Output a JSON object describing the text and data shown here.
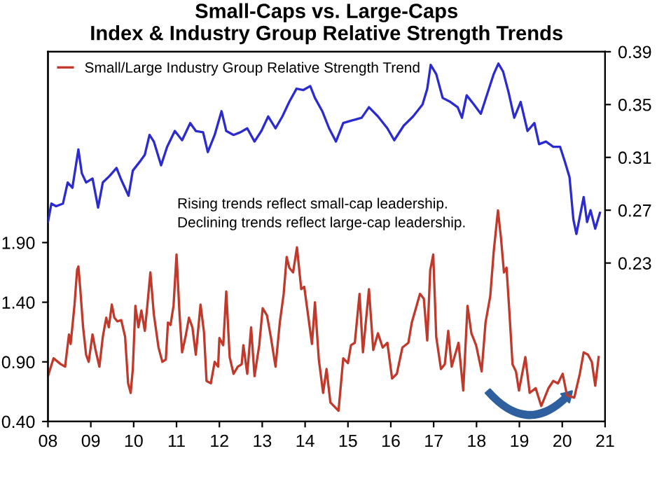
{
  "chart_data": {
    "type": "line",
    "title": "Small-Caps vs. Large-Caps\nIndex & Industry Group Relative Strength Trends",
    "xlim": [
      2008,
      2021
    ],
    "xticks": [
      {
        "value": 2008,
        "label": "08"
      },
      {
        "value": 2009,
        "label": "09"
      },
      {
        "value": 2010,
        "label": "10"
      },
      {
        "value": 2011,
        "label": "11"
      },
      {
        "value": 2012,
        "label": "12"
      },
      {
        "value": 2013,
        "label": "13"
      },
      {
        "value": 2014,
        "label": "14"
      },
      {
        "value": 2015,
        "label": "15"
      },
      {
        "value": 2016,
        "label": "16"
      },
      {
        "value": 2017,
        "label": "17"
      },
      {
        "value": 2018,
        "label": "18"
      },
      {
        "value": 2019,
        "label": "19"
      },
      {
        "value": 2020,
        "label": "20"
      },
      {
        "value": 2021,
        "label": "21"
      }
    ],
    "ylim": [
      0.4,
      3.5
    ],
    "yticks": [
      {
        "value": 0.4,
        "label": "0.40"
      },
      {
        "value": 0.9,
        "label": "0.90"
      },
      {
        "value": 1.4,
        "label": "1.40"
      },
      {
        "value": 1.9,
        "label": "1.90"
      }
    ],
    "y2lim": [
      0.11,
      0.39
    ],
    "y2ticks": [
      0.23,
      0.27,
      0.31,
      0.35,
      0.39
    ],
    "legend": "top left",
    "grid": false,
    "annotations": [
      "Rising trends reflect small-cap leadership.\nDeclining trends reflect large-cap leadership."
    ],
    "series": [
      {
        "name": "Small/Large Industry Group Relative Strength Trend",
        "color": "#c0392b",
        "axis": "y",
        "x": [
          2008.0,
          2008.13,
          2008.3,
          2008.4,
          2008.49,
          2008.53,
          2008.62,
          2008.68,
          2008.71,
          2008.75,
          2008.82,
          2008.89,
          2008.95,
          2009.04,
          2009.11,
          2009.2,
          2009.28,
          2009.36,
          2009.42,
          2009.49,
          2009.55,
          2009.62,
          2009.71,
          2009.8,
          2009.87,
          2009.93,
          2009.98,
          2010.04,
          2010.11,
          2010.18,
          2010.26,
          2010.31,
          2010.39,
          2010.47,
          2010.58,
          2010.67,
          2010.75,
          2010.8,
          2010.86,
          2010.93,
          2011.0,
          2011.07,
          2011.13,
          2011.21,
          2011.29,
          2011.37,
          2011.45,
          2011.56,
          2011.64,
          2011.7,
          2011.8,
          2011.89,
          2011.97,
          2012.0,
          2012.09,
          2012.16,
          2012.24,
          2012.33,
          2012.43,
          2012.52,
          2012.56,
          2012.65,
          2012.74,
          2012.82,
          2012.93,
          2013.01,
          2013.11,
          2013.2,
          2013.31,
          2013.41,
          2013.5,
          2013.57,
          2013.63,
          2013.72,
          2013.81,
          2013.91,
          2013.98,
          2014.07,
          2014.16,
          2014.23,
          2014.32,
          2014.42,
          2014.5,
          2014.59,
          2014.78,
          2014.89,
          2015.0,
          2015.07,
          2015.16,
          2015.27,
          2015.35,
          2015.49,
          2015.59,
          2015.7,
          2015.81,
          2015.92,
          2016.03,
          2016.14,
          2016.27,
          2016.41,
          2016.49,
          2016.57,
          2016.68,
          2016.77,
          2016.85,
          2016.92,
          2016.99,
          2017.06,
          2017.17,
          2017.26,
          2017.34,
          2017.42,
          2017.58,
          2017.69,
          2017.79,
          2017.88,
          2017.99,
          2018.12,
          2018.21,
          2018.32,
          2018.4,
          2018.5,
          2018.57,
          2018.64,
          2018.7,
          2018.77,
          2018.84,
          2018.92,
          2018.99,
          2019.14,
          2019.24,
          2019.38,
          2019.51,
          2019.68,
          2019.79,
          2019.9,
          2020.01,
          2020.11,
          2020.28,
          2020.41,
          2020.5,
          2020.6,
          2020.69,
          2020.77,
          2020.85
        ],
        "values": [
          0.78,
          0.93,
          0.88,
          0.86,
          1.13,
          1.05,
          1.38,
          1.67,
          1.7,
          1.53,
          1.19,
          0.96,
          0.9,
          1.13,
          1.0,
          0.86,
          1.11,
          1.27,
          1.19,
          1.38,
          1.27,
          1.24,
          1.25,
          1.11,
          0.72,
          0.64,
          0.84,
          1.37,
          1.19,
          1.33,
          1.16,
          1.34,
          1.65,
          1.3,
          1.02,
          0.9,
          0.92,
          1.23,
          1.21,
          1.37,
          1.8,
          1.3,
          0.98,
          1.11,
          1.27,
          1.19,
          0.96,
          1.38,
          1.15,
          0.74,
          0.72,
          0.9,
          0.86,
          1.1,
          1.04,
          1.49,
          0.94,
          0.8,
          0.86,
          0.88,
          1.04,
          0.8,
          1.19,
          0.78,
          1.04,
          1.35,
          1.29,
          1.11,
          0.86,
          1.23,
          1.47,
          1.78,
          1.69,
          1.65,
          1.86,
          1.51,
          1.53,
          1.29,
          1.05,
          1.4,
          0.92,
          0.64,
          0.84,
          0.56,
          0.49,
          0.93,
          0.89,
          1.04,
          1.06,
          1.47,
          0.98,
          1.51,
          1.0,
          1.14,
          1.02,
          1.06,
          0.76,
          0.8,
          1.02,
          1.06,
          1.23,
          1.33,
          1.47,
          1.43,
          1.08,
          1.67,
          1.8,
          1.11,
          0.84,
          0.88,
          1.16,
          0.86,
          1.06,
          0.66,
          1.37,
          1.14,
          1.04,
          0.82,
          1.23,
          1.45,
          1.82,
          2.17,
          1.94,
          1.65,
          1.69,
          1.3,
          0.88,
          0.82,
          0.66,
          0.94,
          0.64,
          0.68,
          0.53,
          0.68,
          0.74,
          0.72,
          0.8,
          0.62,
          0.6,
          0.8,
          0.98,
          0.96,
          0.9,
          0.7,
          0.94
        ]
      },
      {
        "color": "#2b2bd0",
        "axis": "y2",
        "x": [
          2008.0,
          2008.08,
          2008.19,
          2008.35,
          2008.46,
          2008.57,
          2008.71,
          2008.79,
          2008.89,
          2009.04,
          2009.17,
          2009.28,
          2009.44,
          2009.6,
          2009.71,
          2009.88,
          2009.98,
          2010.15,
          2010.26,
          2010.37,
          2010.47,
          2010.64,
          2010.78,
          2010.96,
          2011.13,
          2011.32,
          2011.45,
          2011.62,
          2011.73,
          2011.89,
          2012.05,
          2012.16,
          2012.33,
          2012.49,
          2012.65,
          2012.82,
          2012.98,
          2013.14,
          2013.31,
          2013.47,
          2013.63,
          2013.8,
          2013.96,
          2014.12,
          2014.23,
          2014.4,
          2014.56,
          2014.72,
          2014.89,
          2015.1,
          2015.32,
          2015.49,
          2015.7,
          2015.92,
          2016.08,
          2016.3,
          2016.52,
          2016.74,
          2016.85,
          2016.93,
          2017.06,
          2017.21,
          2017.39,
          2017.56,
          2017.66,
          2017.77,
          2017.94,
          2018.1,
          2018.26,
          2018.4,
          2018.51,
          2018.62,
          2018.75,
          2018.88,
          2019.03,
          2019.19,
          2019.35,
          2019.46,
          2019.62,
          2019.79,
          2019.95,
          2020.06,
          2020.17,
          2020.26,
          2020.33,
          2020.41,
          2020.5,
          2020.58,
          2020.66,
          2020.77,
          2020.88
        ],
        "values": [
          0.261,
          0.275,
          0.273,
          0.275,
          0.291,
          0.287,
          0.316,
          0.298,
          0.291,
          0.294,
          0.272,
          0.291,
          0.296,
          0.302,
          0.293,
          0.281,
          0.3,
          0.307,
          0.312,
          0.327,
          0.322,
          0.304,
          0.318,
          0.33,
          0.323,
          0.336,
          0.33,
          0.329,
          0.314,
          0.327,
          0.345,
          0.33,
          0.327,
          0.329,
          0.332,
          0.322,
          0.33,
          0.341,
          0.332,
          0.341,
          0.352,
          0.362,
          0.361,
          0.364,
          0.355,
          0.345,
          0.332,
          0.322,
          0.336,
          0.338,
          0.34,
          0.348,
          0.341,
          0.332,
          0.323,
          0.334,
          0.341,
          0.35,
          0.362,
          0.38,
          0.373,
          0.355,
          0.352,
          0.348,
          0.34,
          0.357,
          0.35,
          0.343,
          0.359,
          0.373,
          0.381,
          0.375,
          0.359,
          0.34,
          0.352,
          0.33,
          0.336,
          0.32,
          0.322,
          0.318,
          0.318,
          0.307,
          0.295,
          0.263,
          0.252,
          0.265,
          0.28,
          0.261,
          0.27,
          0.256,
          0.268
        ]
      }
    ]
  }
}
